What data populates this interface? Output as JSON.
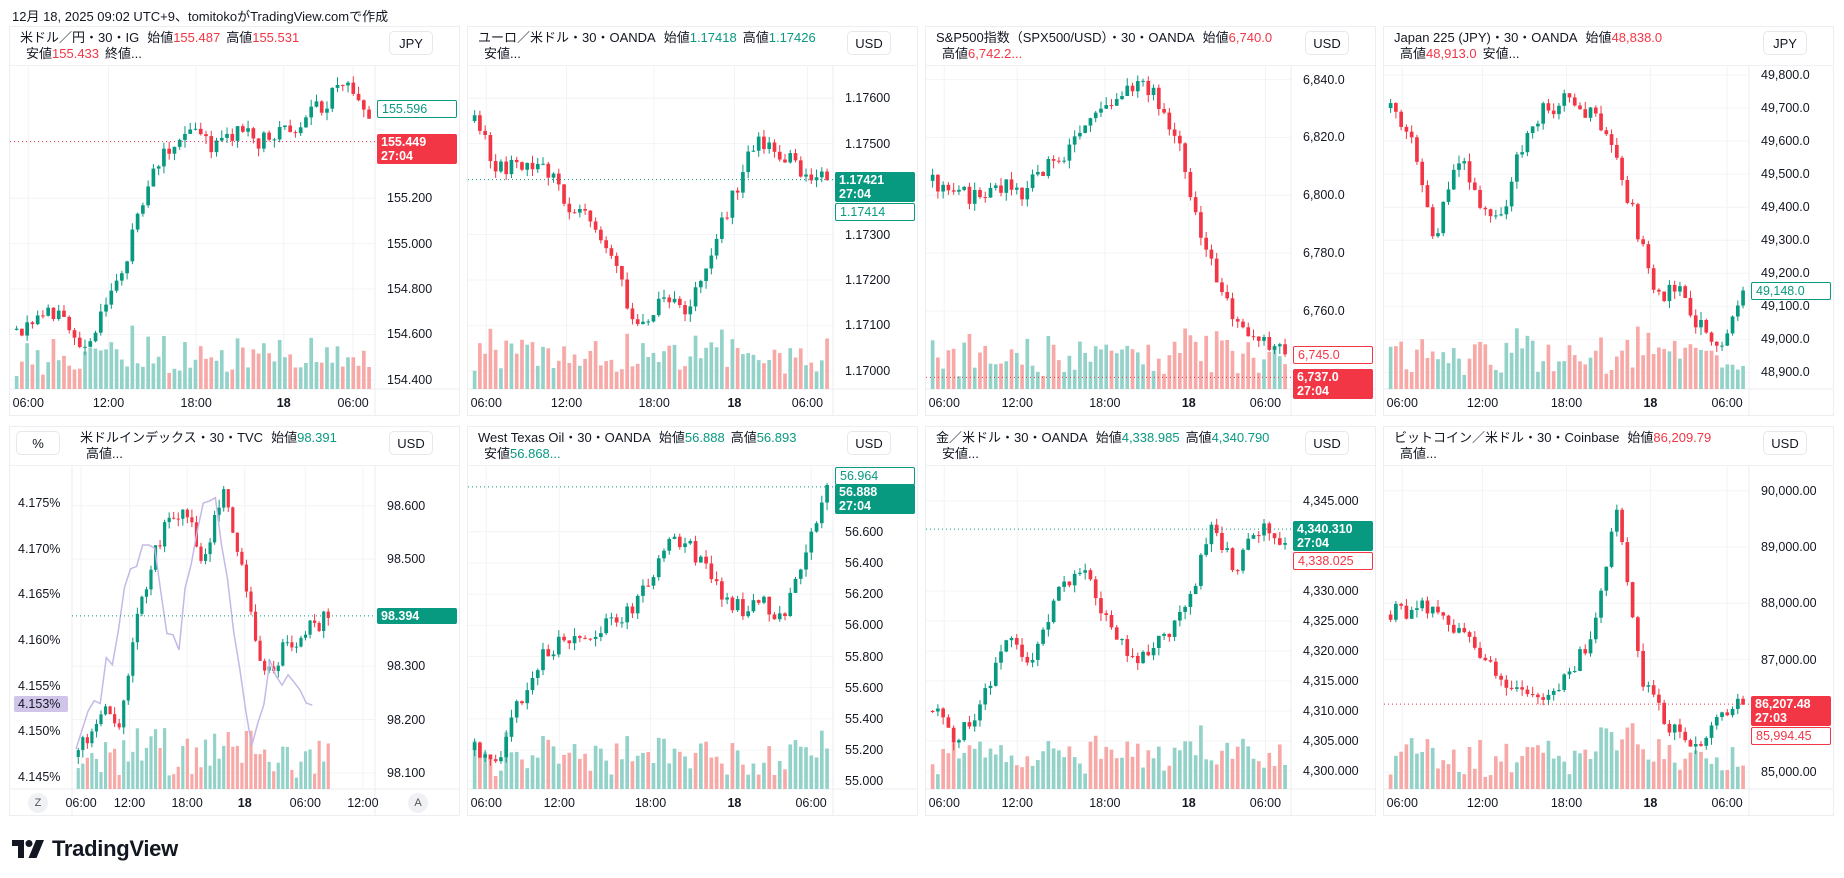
{
  "header": {
    "caption": "12月 18, 2025 09:02 UTC+9、tomitokoがTradingView.comで作成"
  },
  "brand": {
    "name": "TradingView",
    "logo_text": "TV"
  },
  "colors": {
    "up": "#089981",
    "down": "#f23645",
    "up_volume": "#93d2c9",
    "down_volume": "#f7a9a7",
    "yield_line": "#c5b8e6",
    "yield_tag": "#d1c4e9",
    "grid": "#f3f4f6"
  },
  "panels": [
    {
      "symbol": "米ドル／円・30・IG",
      "ohlc_color": "down",
      "ohlc": [
        {
          "label": "始値",
          "value": "155.487"
        },
        {
          "label": "高値",
          "value": "155.531"
        },
        {
          "label": "安値",
          "value": "155.433"
        },
        {
          "label": "終値...",
          "value": ""
        }
      ],
      "currency": "JPY"
    },
    {
      "symbol": "ユーロ／米ドル・30・OANDA",
      "ohlc_color": "up",
      "ohlc": [
        {
          "label": "始値",
          "value": "1.17418"
        },
        {
          "label": "高値",
          "value": "1.17426"
        },
        {
          "label": "安値...",
          "value": ""
        }
      ],
      "currency": "USD"
    },
    {
      "symbol": "S&P500指数（SPX500/USD）・30・OANDA",
      "ohlc_color": "down",
      "ohlc": [
        {
          "label": "始値",
          "value": "6,740.0"
        },
        {
          "label": "高値",
          "value": "6,742.2..."
        }
      ],
      "currency": "USD"
    },
    {
      "symbol": "Japan 225 (JPY)・30・OANDA",
      "ohlc_color": "down",
      "ohlc": [
        {
          "label": "始値",
          "value": "48,838.0"
        },
        {
          "label": "高値",
          "value": "48,913.0"
        },
        {
          "label": "安値...",
          "value": ""
        }
      ],
      "currency": "JPY"
    },
    {
      "symbol": "米ドルインデックス・30・TVC",
      "ohlc_color": "up",
      "ohlc": [
        {
          "label": "始値",
          "value": "98.391"
        },
        {
          "label": "高値...",
          "value": ""
        }
      ],
      "currency": "USD",
      "left_scale_button": "%",
      "zoom_button": "Z",
      "auto_button": "A"
    },
    {
      "symbol": "West Texas Oil・30・OANDA",
      "ohlc_color": "up",
      "ohlc": [
        {
          "label": "始値",
          "value": "56.888"
        },
        {
          "label": "高値",
          "value": "56.893"
        },
        {
          "label": "安値",
          "value": "56.868..."
        }
      ],
      "currency": "USD"
    },
    {
      "symbol": "金／米ドル・30・OANDA",
      "ohlc_color": "up",
      "ohlc": [
        {
          "label": "始値",
          "value": "4,338.985"
        },
        {
          "label": "高値",
          "value": "4,340.790"
        },
        {
          "label": "安値...",
          "value": ""
        }
      ],
      "currency": "USD"
    },
    {
      "symbol": "ビットコイン／米ドル・30・Coinbase",
      "ohlc_color": "down",
      "ohlc": [
        {
          "label": "始値",
          "value": "86,209.79"
        },
        {
          "label": "高値...",
          "value": ""
        }
      ],
      "currency": "USD"
    }
  ],
  "chart_data": [
    {
      "type": "candlestick",
      "ylim": [
        154.36,
        155.76
      ],
      "yticks": [
        "154.400",
        "154.600",
        "154.800",
        "155.000",
        "155.200"
      ],
      "time_labels": [
        "06:00",
        "12:00",
        "18:00",
        "18",
        "06:00"
      ],
      "close_path": [
        154.62,
        154.68,
        154.72,
        154.55,
        154.7,
        154.95,
        155.25,
        155.45,
        155.5,
        155.42,
        155.5,
        155.45,
        155.48,
        155.55,
        155.62,
        155.7,
        155.55
      ],
      "price_tags": [
        {
          "value": "155.596",
          "style": "up-outline"
        },
        {
          "value": "155.449",
          "sub": "27:04",
          "style": "down-filled"
        }
      ]
    },
    {
      "type": "candlestick",
      "ylim": [
        1.1696,
        1.1766
      ],
      "yticks": [
        "1.17000",
        "1.17100",
        "1.17200",
        "1.17300",
        "1.17500",
        "1.17600"
      ],
      "time_labels": [
        "06:00",
        "12:00",
        "18:00",
        "18",
        "06:00"
      ],
      "close_path": [
        1.1755,
        1.1744,
        1.1746,
        1.1745,
        1.1735,
        1.1733,
        1.1722,
        1.1708,
        1.1716,
        1.1714,
        1.1726,
        1.1738,
        1.1752,
        1.1748,
        1.1744,
        1.1742
      ],
      "price_tags": [
        {
          "value": "1.17421",
          "sub": "27:04",
          "style": "up-filled"
        },
        {
          "value": "1.17414",
          "style": "up-outline"
        }
      ]
    },
    {
      "type": "candlestick",
      "ylim": [
        6733,
        6843
      ],
      "yticks": [
        "6,760.0",
        "6,780.0",
        "6,800.0",
        "6,820.0",
        "6,840.0"
      ],
      "time_labels": [
        "06:00",
        "12:00",
        "18:00",
        "18",
        "06:00"
      ],
      "close_path": [
        6805,
        6801,
        6799,
        6804,
        6800,
        6808,
        6815,
        6826,
        6833,
        6838,
        6836,
        6822,
        6792,
        6766,
        6756,
        6750,
        6745
      ],
      "price_tags": [
        {
          "value": "6,745.0",
          "style": "down-outline"
        },
        {
          "value": "6,737.0",
          "sub": "27:04",
          "style": "down-filled"
        }
      ]
    },
    {
      "type": "candlestick",
      "ylim": [
        48850,
        49812
      ],
      "yticks": [
        "48,900.0",
        "49,000.0",
        "49,100.0",
        "49,200.0",
        "49,300.0",
        "49,400.0",
        "49,500.0",
        "49,600.0",
        "49,700.0",
        "49,800.0"
      ],
      "time_labels": [
        "06:00",
        "12:00",
        "18:00",
        "18",
        "06:00"
      ],
      "close_path": [
        49700,
        49620,
        49300,
        49560,
        49420,
        49350,
        49600,
        49700,
        49720,
        49690,
        49610,
        49380,
        49120,
        49150,
        49040,
        48960,
        49148
      ],
      "price_tags": [
        {
          "value": "49,148.0",
          "style": "up-outline"
        }
      ]
    },
    {
      "type": "candlestick",
      "ylim": [
        98.07,
        98.665
      ],
      "yticks": [
        "98.100",
        "98.200",
        "98.300",
        "98.500",
        "98.600"
      ],
      "left_ylim": [
        4.1437,
        4.1785
      ],
      "left_yticks": [
        "4.145%",
        "4.150%",
        "4.155%",
        "4.160%",
        "4.165%",
        "4.170%",
        "4.175%"
      ],
      "time_labels": [
        "06:00",
        "12:00",
        "18:00",
        "18",
        "06:00",
        "12:00"
      ],
      "close_path": [
        98.13,
        98.22,
        98.19,
        98.42,
        98.55,
        98.6,
        98.5,
        98.64,
        98.45,
        98.28,
        98.34,
        98.37,
        98.39
      ],
      "yield_path": [
        4.148,
        4.152,
        4.16,
        4.17,
        4.17,
        4.158,
        4.17,
        4.177,
        4.16,
        4.149,
        4.158,
        4.154,
        4.152
      ],
      "price_tags": [
        {
          "value": "98.394",
          "style": "up-filled"
        }
      ],
      "left_tags": [
        {
          "value": "4.153%",
          "style": "yield-filled"
        }
      ]
    },
    {
      "type": "candlestick",
      "ylim": [
        54.95,
        56.99
      ],
      "yticks": [
        "55.000",
        "55.200",
        "55.400",
        "55.600",
        "55.800",
        "56.000",
        "56.200",
        "56.400",
        "56.600"
      ],
      "time_labels": [
        "06:00",
        "12:00",
        "18:00",
        "18",
        "06:00"
      ],
      "close_path": [
        55.2,
        55.1,
        55.5,
        55.8,
        55.9,
        55.95,
        56.02,
        56.1,
        56.32,
        56.6,
        56.45,
        56.25,
        56.1,
        56.2,
        56.0,
        56.5,
        56.9
      ],
      "price_tags": [
        {
          "value": "56.964",
          "style": "up-outline"
        },
        {
          "value": "56.888",
          "sub": "27:04",
          "style": "up-filled"
        }
      ]
    },
    {
      "type": "candlestick",
      "ylim": [
        4297,
        4350
      ],
      "yticks": [
        "4,300.000",
        "4,305.000",
        "4,310.000",
        "4,315.000",
        "4,320.000",
        "4,325.000",
        "4,330.000",
        "4,345.000"
      ],
      "time_labels": [
        "06:00",
        "12:00",
        "18:00",
        "18",
        "06:00"
      ],
      "close_path": [
        4310,
        4305,
        4312,
        4322,
        4318,
        4330,
        4334,
        4325,
        4318,
        4321,
        4326,
        4340,
        4334,
        4341,
        4338
      ],
      "price_tags": [
        {
          "value": "4,340.310",
          "sub": "27:04",
          "style": "up-filled"
        },
        {
          "value": "4,338.025",
          "style": "down-outline"
        }
      ]
    },
    {
      "type": "candlestick",
      "ylim": [
        84700,
        90350
      ],
      "yticks": [
        "85,000.00",
        "87,000.00",
        "88,000.00",
        "89,000.00",
        "90,000.00"
      ],
      "time_labels": [
        "06:00",
        "12:00",
        "18:00",
        "18",
        "06:00"
      ],
      "close_path": [
        87800,
        87900,
        87850,
        87400,
        86800,
        86500,
        86300,
        86700,
        87400,
        89700,
        86600,
        85800,
        85400,
        86000,
        86200
      ],
      "price_tags": [
        {
          "value": "86,207.48",
          "sub": "27:03",
          "style": "down-filled"
        },
        {
          "value": "85,994.45",
          "style": "down-outline"
        }
      ]
    }
  ]
}
